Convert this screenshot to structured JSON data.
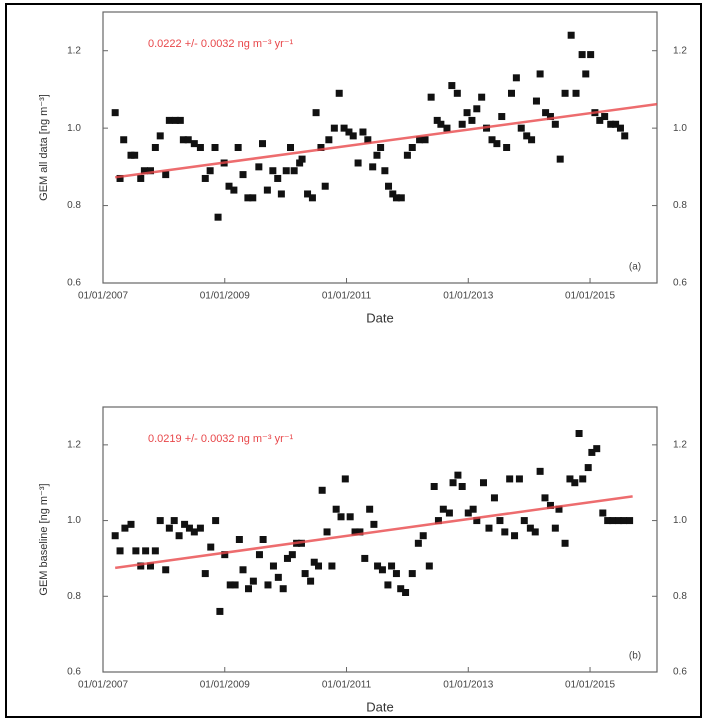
{
  "chart_data": [
    {
      "type": "scatter",
      "annotation": "0.0222 +/- 0.0032 ng m⁻³ yr⁻¹",
      "annotation_color": "#e8474a",
      "xlabel": "Date",
      "ylabel": "GEM all data [ng m⁻³]",
      "panel_label": "(a)",
      "xlim": [
        2007,
        2016.1
      ],
      "xticks": [
        {
          "value": 2007,
          "label": "01/01/2007"
        },
        {
          "value": 2009,
          "label": "01/01/2009"
        },
        {
          "value": 2011,
          "label": "01/01/2011"
        },
        {
          "value": 2013,
          "label": "01/01/2013"
        },
        {
          "value": 2015,
          "label": "01/01/2015"
        }
      ],
      "ylim": [
        0.6,
        1.3
      ],
      "yticks": [
        0.6,
        0.8,
        {
          "value": 1,
          "label": "1.0"
        },
        1.2
      ],
      "y2lim": [
        0.6,
        1.3
      ],
      "y2ticks": [
        0.6,
        0.8,
        {
          "value": 1,
          "label": "1.0"
        },
        1.2
      ],
      "series": [
        {
          "color": "#111111",
          "x": [
            2007.2,
            2007.28,
            2007.34,
            2007.46,
            2007.52,
            2007.62,
            2007.68,
            2007.78,
            2007.86,
            2007.94,
            2008.03,
            2008.09,
            2008.19,
            2008.27,
            2008.32,
            2008.4,
            2008.5,
            2008.6,
            2008.68,
            2008.76,
            2008.84,
            2008.89,
            2008.99,
            2009.07,
            2009.15,
            2009.22,
            2009.3,
            2009.38,
            2009.46,
            2009.56,
            2009.62,
            2009.7,
            2009.79,
            2009.87,
            2009.93,
            2010.01,
            2010.08,
            2010.14,
            2010.23,
            2010.27,
            2010.36,
            2010.44,
            2010.5,
            2010.58,
            2010.65,
            2010.71,
            2010.8,
            2010.88,
            2010.96,
            2011.04,
            2011.11,
            2011.19,
            2011.27,
            2011.35,
            2011.43,
            2011.5,
            2011.56,
            2011.63,
            2011.69,
            2011.76,
            2011.82,
            2011.9,
            2012.0,
            2012.08,
            2012.2,
            2012.29,
            2012.39,
            2012.49,
            2012.55,
            2012.65,
            2012.73,
            2012.82,
            2012.9,
            2012.98,
            2013.06,
            2013.14,
            2013.22,
            2013.3,
            2013.39,
            2013.47,
            2013.55,
            2013.63,
            2013.71,
            2013.79,
            2013.87,
            2013.96,
            2014.04,
            2014.12,
            2014.18,
            2014.27,
            2014.35,
            2014.43,
            2014.51,
            2014.59,
            2014.69,
            2014.77,
            2014.87,
            2014.93,
            2015.01,
            2015.08,
            2015.16,
            2015.24,
            2015.34,
            2015.42,
            2015.5,
            2015.57
          ],
          "values": [
            1.04,
            0.87,
            0.97,
            0.93,
            0.93,
            0.87,
            0.89,
            0.89,
            0.95,
            0.98,
            0.88,
            1.02,
            1.02,
            1.02,
            0.97,
            0.97,
            0.96,
            0.95,
            0.87,
            0.89,
            0.95,
            0.77,
            0.91,
            0.85,
            0.84,
            0.95,
            0.88,
            0.82,
            0.82,
            0.9,
            0.96,
            0.84,
            0.89,
            0.87,
            0.83,
            0.89,
            0.95,
            0.89,
            0.91,
            0.92,
            0.83,
            0.82,
            1.04,
            0.95,
            0.85,
            0.97,
            1.0,
            1.09,
            1.0,
            0.99,
            0.98,
            0.91,
            0.99,
            0.97,
            0.9,
            0.93,
            0.95,
            0.89,
            0.85,
            0.83,
            0.82,
            0.82,
            0.93,
            0.95,
            0.97,
            0.97,
            1.08,
            1.02,
            1.01,
            1.0,
            1.11,
            1.09,
            1.01,
            1.04,
            1.02,
            1.05,
            1.08,
            1.0,
            0.97,
            0.96,
            1.03,
            0.95,
            1.09,
            1.13,
            1.0,
            0.98,
            0.97,
            1.07,
            1.14,
            1.04,
            1.03,
            1.01,
            0.92,
            1.09,
            1.24,
            1.09,
            1.19,
            1.14,
            1.19,
            1.04,
            1.02,
            1.03,
            1.01,
            1.01,
            1.0,
            0.98
          ]
        }
      ],
      "trend": {
        "color": "#e8474a",
        "x": [
          2007.2,
          2016.1
        ],
        "values": [
          0.873,
          1.062
        ]
      }
    },
    {
      "type": "scatter",
      "annotation": "0.0219 +/- 0.0032 ng m⁻³ yr⁻¹",
      "annotation_color": "#e8474a",
      "xlabel": "Date",
      "ylabel": "GEM baseline [ng m⁻³]",
      "panel_label": "(b)",
      "xlim": [
        2007,
        2016.1
      ],
      "xticks": [
        {
          "value": 2007,
          "label": "01/01/2007"
        },
        {
          "value": 2009,
          "label": "01/01/2009"
        },
        {
          "value": 2011,
          "label": "01/01/2011"
        },
        {
          "value": 2013,
          "label": "01/01/2013"
        },
        {
          "value": 2015,
          "label": "01/01/2015"
        }
      ],
      "ylim": [
        0.6,
        1.3
      ],
      "yticks": [
        0.6,
        0.8,
        {
          "value": 1,
          "label": "1.0"
        },
        1.2
      ],
      "y2lim": [
        0.6,
        1.3
      ],
      "y2ticks": [
        0.6,
        0.8,
        {
          "value": 1,
          "label": "1.0"
        },
        1.2
      ],
      "series": [
        {
          "color": "#111111",
          "x": [
            2007.2,
            2007.28,
            2007.36,
            2007.46,
            2007.54,
            2007.62,
            2007.7,
            2007.78,
            2007.86,
            2007.94,
            2008.03,
            2008.09,
            2008.17,
            2008.25,
            2008.34,
            2008.42,
            2008.5,
            2008.6,
            2008.68,
            2008.77,
            2008.85,
            2008.92,
            2009.0,
            2009.09,
            2009.17,
            2009.24,
            2009.3,
            2009.39,
            2009.47,
            2009.57,
            2009.63,
            2009.71,
            2009.8,
            2009.88,
            2009.96,
            2010.03,
            2010.11,
            2010.18,
            2010.26,
            2010.32,
            2010.41,
            2010.47,
            2010.54,
            2010.6,
            2010.68,
            2010.76,
            2010.83,
            2010.91,
            2010.98,
            2011.06,
            2011.14,
            2011.22,
            2011.3,
            2011.38,
            2011.45,
            2011.51,
            2011.59,
            2011.68,
            2011.74,
            2011.82,
            2011.89,
            2011.97,
            2012.08,
            2012.18,
            2012.26,
            2012.36,
            2012.44,
            2012.51,
            2012.59,
            2012.69,
            2012.75,
            2012.83,
            2012.9,
            2013.0,
            2013.08,
            2013.14,
            2013.25,
            2013.34,
            2013.43,
            2013.52,
            2013.6,
            2013.68,
            2013.76,
            2013.84,
            2013.92,
            2014.02,
            2014.1,
            2014.18,
            2014.26,
            2014.35,
            2014.43,
            2014.49,
            2014.59,
            2014.67,
            2014.75,
            2014.82,
            2014.88,
            2014.97,
            2015.03,
            2015.11,
            2015.21,
            2015.29,
            2015.37,
            2015.47,
            2015.55,
            2015.65
          ],
          "values": [
            0.96,
            0.92,
            0.98,
            0.99,
            0.92,
            0.88,
            0.92,
            0.88,
            0.92,
            1.0,
            0.87,
            0.98,
            1.0,
            0.96,
            0.99,
            0.98,
            0.97,
            0.98,
            0.86,
            0.93,
            1.0,
            0.76,
            0.91,
            0.83,
            0.83,
            0.95,
            0.87,
            0.82,
            0.84,
            0.91,
            0.95,
            0.83,
            0.88,
            0.85,
            0.82,
            0.9,
            0.91,
            0.94,
            0.94,
            0.86,
            0.84,
            0.89,
            0.88,
            1.08,
            0.97,
            0.88,
            1.03,
            1.01,
            1.11,
            1.01,
            0.97,
            0.97,
            0.9,
            1.03,
            0.99,
            0.88,
            0.87,
            0.83,
            0.88,
            0.86,
            0.82,
            0.81,
            0.86,
            0.94,
            0.96,
            0.88,
            1.09,
            1.0,
            1.03,
            1.02,
            1.1,
            1.12,
            1.09,
            1.02,
            1.03,
            1.0,
            1.1,
            0.98,
            1.06,
            1.0,
            0.97,
            1.11,
            0.96,
            1.11,
            1.0,
            0.98,
            0.97,
            1.13,
            1.06,
            1.04,
            0.98,
            1.03,
            0.94,
            1.11,
            1.1,
            1.23,
            1.11,
            1.14,
            1.18,
            1.19,
            1.02,
            1.0,
            1.0,
            1.0,
            1.0,
            1.0
          ]
        }
      ],
      "trend": {
        "color": "#e8474a",
        "x": [
          2007.2,
          2015.7
        ],
        "values": [
          0.875,
          1.064
        ]
      }
    }
  ]
}
